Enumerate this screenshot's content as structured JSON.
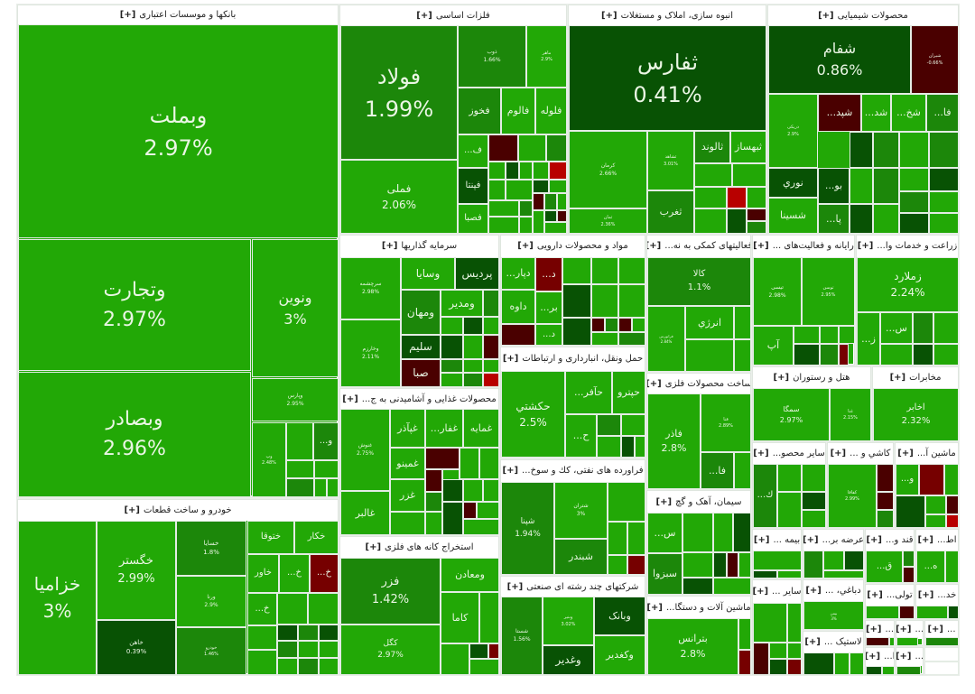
{
  "expand_label": "[+]",
  "colors": {
    "g1": "#22a806",
    "g2": "#1c870a",
    "g3": "#126d06",
    "g4": "#085204",
    "r1": "#4a0000",
    "r2": "#760000",
    "r3": "#b80000",
    "frame": "#e9eee9"
  },
  "sectors": [
    {
      "title": "بانکها و موسسات اعتباری",
      "stocks": [
        {
          "t": "وبملت",
          "p": "2.97%"
        },
        {
          "t": "وتجارت",
          "p": "2.97%"
        },
        {
          "t": "ونوین",
          "p": "3%"
        },
        {
          "t": "وبصادر",
          "p": "2.96%"
        },
        {
          "t": "وپارس",
          "p": "2.95%"
        },
        {
          "t": "وپ",
          "p": "2.48%"
        },
        {
          "t": "و..."
        }
      ]
    },
    {
      "title": "خودرو و ساخت قطعات",
      "stocks": [
        {
          "t": "خزامیا",
          "p": "3%"
        },
        {
          "t": "خگستر",
          "p": "2.99%"
        },
        {
          "t": "خاهن",
          "p": "0.39%"
        },
        {
          "t": "خسایا",
          "p": "1.8%"
        },
        {
          "t": "ورنا",
          "p": "2.9%"
        },
        {
          "t": "خودرو",
          "p": "1.46%"
        },
        {
          "t": "ختوقا"
        },
        {
          "t": "خکار"
        },
        {
          "t": "خاور"
        },
        {
          "t": "خ..."
        },
        {
          "t": "خ..."
        },
        {
          "t": "خ..."
        }
      ]
    },
    {
      "title": "فلزات اساسی",
      "stocks": [
        {
          "t": "فولاد",
          "p": "1.99%"
        },
        {
          "t": "فملی",
          "p": "2.06%"
        },
        {
          "t": "ذوب",
          "p": "1.66%"
        },
        {
          "t": "ماهر",
          "p": "2.9%"
        },
        {
          "t": "فخوز"
        },
        {
          "t": "فالوم"
        },
        {
          "t": "فلوله"
        },
        {
          "t": "ف..."
        },
        {
          "t": "فپنتا"
        },
        {
          "t": "فصبا"
        }
      ]
    },
    {
      "title": "انبوه سازی، املاک و مستغلات",
      "stocks": [
        {
          "t": "ثفارس",
          "p": "0.41%"
        },
        {
          "t": "کرمان",
          "p": "2.66%"
        },
        {
          "t": "ثشاهد",
          "p": "3.01%"
        },
        {
          "t": "ثالوند"
        },
        {
          "t": "ثبهساز"
        },
        {
          "t": "ثمان",
          "p": "2.36%"
        },
        {
          "t": "ثغرب"
        }
      ]
    },
    {
      "title": "محصولات شیمیایی",
      "stocks": [
        {
          "t": "شفام",
          "p": "0.86%"
        },
        {
          "t": "شیران",
          "p": "-0.66%"
        },
        {
          "t": "دریکی",
          "p": "2.9%"
        },
        {
          "t": "شپد..."
        },
        {
          "t": "شد..."
        },
        {
          "t": "شخ..."
        },
        {
          "t": "فا..."
        },
        {
          "t": "نوري"
        },
        {
          "t": "شسینا"
        },
        {
          "t": "بو..."
        },
        {
          "t": "پا..."
        }
      ]
    },
    {
      "title": "سرمایه گذاریها",
      "stocks": [
        {
          "t": "سرچشمه",
          "p": "2.98%"
        },
        {
          "t": "وسایا"
        },
        {
          "t": "پردیس"
        },
        {
          "t": "ومهان"
        },
        {
          "t": "ومدیر"
        },
        {
          "t": "سلیم"
        },
        {
          "t": "صبا"
        },
        {
          "t": "وخارزم",
          "p": "2.11%"
        }
      ]
    },
    {
      "title": "مواد و محصولات دارویی",
      "stocks": [
        {
          "t": "دپار..."
        },
        {
          "t": "د..."
        },
        {
          "t": "داوه"
        },
        {
          "t": "بر..."
        },
        {
          "t": "د..."
        }
      ]
    },
    {
      "title": "حمل ونقل، انبارداری و ارتباطات",
      "stocks": [
        {
          "t": "حکشتي",
          "p": "2.5%"
        },
        {
          "t": "حآفر..."
        },
        {
          "t": "حپترو"
        },
        {
          "t": "ح..."
        }
      ]
    },
    {
      "title": "فراورده های نفتی، کك و سوخ...",
      "stocks": [
        {
          "t": "شپنا",
          "p": "1.94%"
        },
        {
          "t": "شتران",
          "p": "3%"
        },
        {
          "t": "شبندر"
        }
      ]
    },
    {
      "title": "شرکتهای چند رشته ای صنعتی",
      "stocks": [
        {
          "t": "شستا",
          "p": "1.56%"
        },
        {
          "t": "وبنیر",
          "p": "3.02%"
        },
        {
          "t": "وبانک"
        },
        {
          "t": "وکغدیر"
        },
        {
          "t": "وغدیر"
        }
      ]
    },
    {
      "title": "محصولات غذایی و آشامیدنی به ج...",
      "stocks": [
        {
          "t": "غنوش",
          "p": "2.75%"
        },
        {
          "t": "غالبر"
        },
        {
          "t": "غپآذر"
        },
        {
          "t": "غفار..."
        },
        {
          "t": "غمایه"
        },
        {
          "t": "غمینو"
        },
        {
          "t": "غزر"
        }
      ]
    },
    {
      "title": "استخراج کانه های فلزی",
      "stocks": [
        {
          "t": "فزر",
          "p": "1.42%"
        },
        {
          "t": "کگل",
          "p": "2.97%"
        },
        {
          "t": "ومعادن"
        },
        {
          "t": "کاما"
        }
      ]
    },
    {
      "title": "فعالیتهای کمکی به نه...",
      "stocks": [
        {
          "t": "کالا",
          "p": "1.1%"
        },
        {
          "t": "فرابورس",
          "p": "2.84%"
        },
        {
          "t": "انرژي"
        }
      ]
    },
    {
      "title": "رایانه و فعالیت‌های ...",
      "stocks": [
        {
          "t": "تیسی",
          "p": "2.98%"
        },
        {
          "t": "توسن",
          "p": "2.95%"
        },
        {
          "t": "آپ"
        }
      ]
    },
    {
      "title": "زراعت و خدمات وا...",
      "stocks": [
        {
          "t": "زملارد",
          "p": "2.24%"
        },
        {
          "t": "ز..."
        },
        {
          "t": "س..."
        }
      ]
    },
    {
      "title": "ساخت محصولات فلزی",
      "stocks": [
        {
          "t": "فاذر",
          "p": "2.8%"
        },
        {
          "t": "فنا",
          "p": "2.89%"
        },
        {
          "t": "فا..."
        }
      ]
    },
    {
      "title": "هتل و رستوران",
      "stocks": [
        {
          "t": "سمگا",
          "p": "2.97%"
        },
        {
          "t": "غنا",
          "p": "2.15%"
        }
      ]
    },
    {
      "title": "مخابرات",
      "stocks": [
        {
          "t": "اخابر",
          "p": "2.32%"
        }
      ]
    },
    {
      "title": "سیمان، آهک و گچ",
      "stocks": [
        {
          "t": "س..."
        },
        {
          "t": "سبزوا"
        }
      ]
    },
    {
      "title": "ماشین آلات و دستگا...",
      "stocks": [
        {
          "t": "بترانس",
          "p": "2.8%"
        }
      ]
    },
    {
      "title": "سایر محصو...",
      "stocks": [
        {
          "t": "ك..."
        }
      ]
    },
    {
      "title": "کاشي و ...",
      "stocks": [
        {
          "t": "کفافا",
          "p": "2.99%"
        }
      ]
    },
    {
      "title": "ماشین آ...",
      "stocks": [
        {
          "t": "و..."
        }
      ]
    },
    {
      "title": "بیمه ...",
      "stocks": []
    },
    {
      "title": "عرضه بر...",
      "stocks": []
    },
    {
      "title": "قند و...",
      "stocks": [
        {
          "t": "ق..."
        }
      ]
    },
    {
      "title": "اط...",
      "stocks": [
        {
          "t": "ه..."
        }
      ]
    },
    {
      "title": "سایر ...",
      "stocks": []
    },
    {
      "title": "دباغي، ...",
      "stocks": [
        {
          "t": "بیمن",
          "p": "3%"
        }
      ]
    },
    {
      "title": "لاستیک ...",
      "stocks": []
    },
    {
      "title": "تولی...",
      "stocks": []
    },
    {
      "title": "خد...",
      "stocks": []
    },
    {
      "title": "...",
      "stocks": []
    },
    {
      "title": "...",
      "stocks": []
    },
    {
      "title": "...",
      "stocks": []
    },
    {
      "title": "ا...",
      "stocks": []
    },
    {
      "title": "...",
      "stocks": []
    }
  ]
}
